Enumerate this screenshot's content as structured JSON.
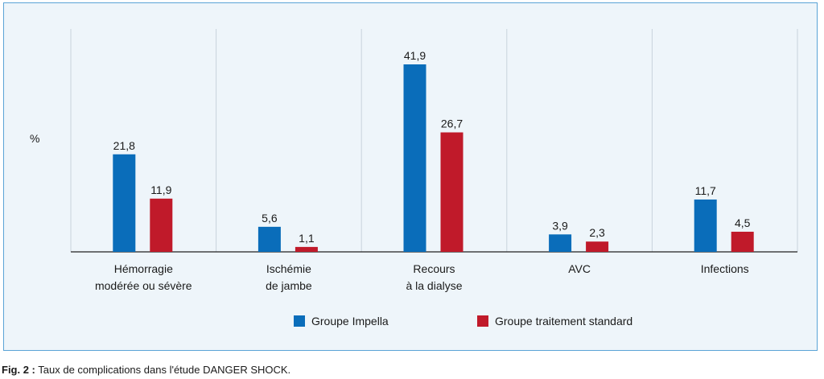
{
  "caption": {
    "prefix": "Fig. 2 :",
    "text": " Taux de complications dans l'étude DANGER SHOCK."
  },
  "chart_data": {
    "type": "bar",
    "ylabel": "%",
    "ylim": [
      0,
      50
    ],
    "grid": "vertical separators",
    "legend_position": "bottom-center",
    "categories": [
      "Hémorragie\nmodérée ou sévère",
      "Ischémie\nde jambe",
      "Recours\nà la dialyse",
      "AVC",
      "Infections"
    ],
    "series": [
      {
        "name": "Groupe Impella",
        "color": "#0a6dba",
        "values": [
          21.8,
          5.6,
          41.9,
          3.9,
          11.7
        ],
        "labels": [
          "21,8",
          "5,6",
          "41,9",
          "3,9",
          "11,7"
        ]
      },
      {
        "name": "Groupe traitement standard",
        "color": "#c01a2a",
        "values": [
          11.9,
          1.1,
          26.7,
          2.3,
          4.5
        ],
        "labels": [
          "11,9",
          "1,1",
          "26,7",
          "2,3",
          "4,5"
        ]
      }
    ]
  }
}
